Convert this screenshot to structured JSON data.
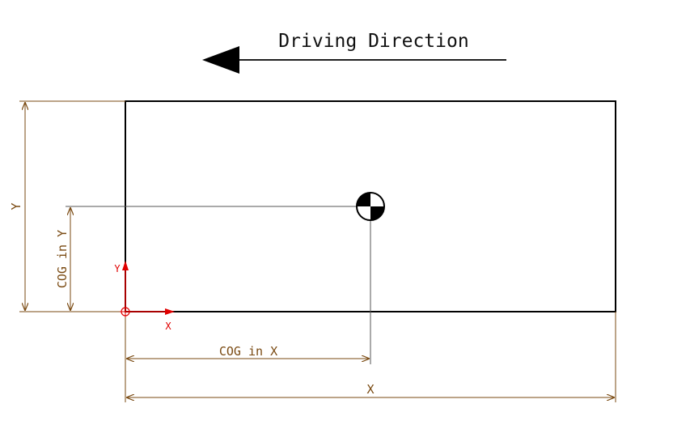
{
  "title": "Driving Direction",
  "dimensions": {
    "total_x": "X",
    "total_y": "Y",
    "cog_x": "COG in X",
    "cog_y": "COG in Y"
  },
  "axes": {
    "x_label": "X",
    "y_label": "Y"
  },
  "colors": {
    "outline": "#000000",
    "dimension": "#7a4a12",
    "axis": "#e00000",
    "arrow": "#000000"
  },
  "icons": {
    "cog_marker": "center-of-gravity-icon",
    "origin_marker": "origin-icon"
  }
}
